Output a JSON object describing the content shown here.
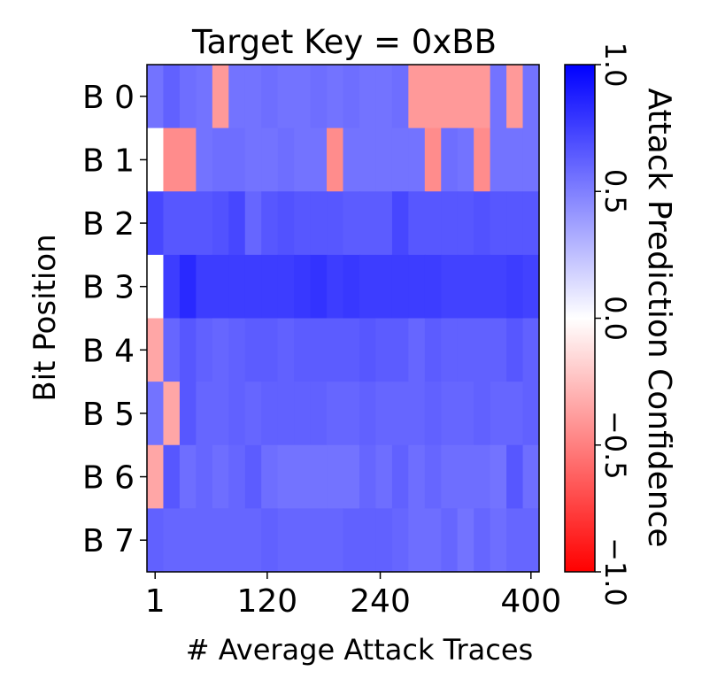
{
  "chart_data": {
    "type": "heatmap",
    "title": "Target Key = 0xBB",
    "xlabel": "# Average Attack Traces",
    "ylabel": "Bit Position",
    "x_ticks": [
      "1",
      "120",
      "240",
      "400"
    ],
    "x_tick_positions": [
      1,
      120,
      240,
      400
    ],
    "x_range": [
      1,
      400
    ],
    "n_columns": 24,
    "rows": [
      "B 0",
      "B 1",
      "B 2",
      "B 3",
      "B 4",
      "B 5",
      "B 6",
      "B 7"
    ],
    "values": [
      [
        0.55,
        0.62,
        0.57,
        0.55,
        -0.4,
        0.55,
        0.55,
        0.57,
        0.55,
        0.55,
        0.57,
        0.55,
        0.57,
        0.55,
        0.55,
        0.57,
        -0.4,
        -0.4,
        -0.4,
        -0.4,
        -0.4,
        0.55,
        -0.4,
        0.55
      ],
      [
        0.0,
        -0.45,
        -0.45,
        0.55,
        0.57,
        0.57,
        0.55,
        0.55,
        0.57,
        0.55,
        0.55,
        -0.45,
        0.55,
        0.55,
        0.55,
        0.55,
        0.55,
        -0.45,
        0.57,
        0.55,
        -0.45,
        0.55,
        0.55,
        0.55
      ],
      [
        0.72,
        0.66,
        0.66,
        0.66,
        0.68,
        0.72,
        0.6,
        0.66,
        0.68,
        0.66,
        0.66,
        0.66,
        0.64,
        0.64,
        0.64,
        0.72,
        0.66,
        0.66,
        0.66,
        0.66,
        0.68,
        0.66,
        0.66,
        0.66
      ],
      [
        0.0,
        0.76,
        0.84,
        0.76,
        0.76,
        0.76,
        0.76,
        0.76,
        0.76,
        0.78,
        0.8,
        0.76,
        0.78,
        0.76,
        0.76,
        0.76,
        0.76,
        0.76,
        0.74,
        0.74,
        0.74,
        0.74,
        0.76,
        0.74
      ],
      [
        -0.35,
        0.6,
        0.66,
        0.62,
        0.6,
        0.62,
        0.64,
        0.64,
        0.62,
        0.64,
        0.64,
        0.64,
        0.64,
        0.66,
        0.64,
        0.64,
        0.6,
        0.64,
        0.62,
        0.62,
        0.62,
        0.62,
        0.66,
        0.62
      ],
      [
        0.55,
        -0.35,
        0.66,
        0.6,
        0.6,
        0.62,
        0.6,
        0.62,
        0.62,
        0.62,
        0.62,
        0.6,
        0.6,
        0.62,
        0.6,
        0.6,
        0.6,
        0.62,
        0.6,
        0.6,
        0.62,
        0.6,
        0.6,
        0.62
      ],
      [
        -0.35,
        0.66,
        0.57,
        0.6,
        0.57,
        0.6,
        0.64,
        0.57,
        0.55,
        0.55,
        0.55,
        0.55,
        0.55,
        0.6,
        0.57,
        0.62,
        0.57,
        0.6,
        0.57,
        0.57,
        0.57,
        0.55,
        0.66,
        0.57
      ],
      [
        0.62,
        0.6,
        0.6,
        0.6,
        0.6,
        0.6,
        0.6,
        0.62,
        0.6,
        0.6,
        0.6,
        0.6,
        0.62,
        0.62,
        0.62,
        0.6,
        0.57,
        0.57,
        0.6,
        0.55,
        0.6,
        0.57,
        0.6,
        0.6
      ]
    ],
    "colorbar": {
      "label": "Attack Prediction Confidence",
      "range": [
        -1.0,
        1.0
      ],
      "ticks": [
        "1.0",
        "0.5",
        "0.0",
        "−0.5",
        "−1.0"
      ],
      "tick_values": [
        1.0,
        0.5,
        0.0,
        -0.5,
        -1.0
      ],
      "colormap": "bwr"
    },
    "grid": false
  }
}
